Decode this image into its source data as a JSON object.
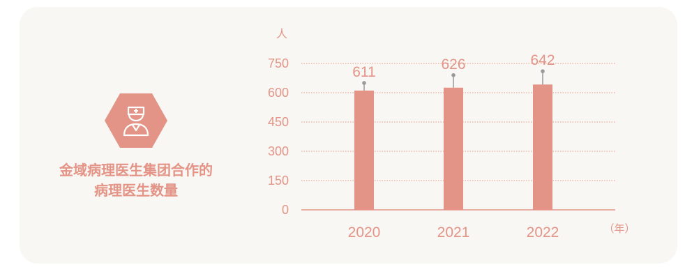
{
  "title": {
    "line1": "金域病理医生集团合作的",
    "line2": "病理医生数量"
  },
  "icon": "doctor-icon",
  "colors": {
    "accent": "#e39487",
    "bar": "#e39487",
    "background": "#f9f7f3",
    "error_bar": "#999999"
  },
  "chart_data": {
    "type": "bar",
    "title": "金域病理医生集团合作的病理医生数量",
    "categories": [
      "2020",
      "2021",
      "2022"
    ],
    "values": [
      611,
      626,
      642
    ],
    "error_top": [
      650,
      690,
      710
    ],
    "data_labels": [
      "611",
      "626",
      "642"
    ],
    "y_unit": "人",
    "x_unit": "（年）",
    "ylim": [
      0,
      750
    ],
    "yticks": [
      0,
      150,
      300,
      450,
      600,
      750
    ],
    "grid": true,
    "legend": "none"
  }
}
